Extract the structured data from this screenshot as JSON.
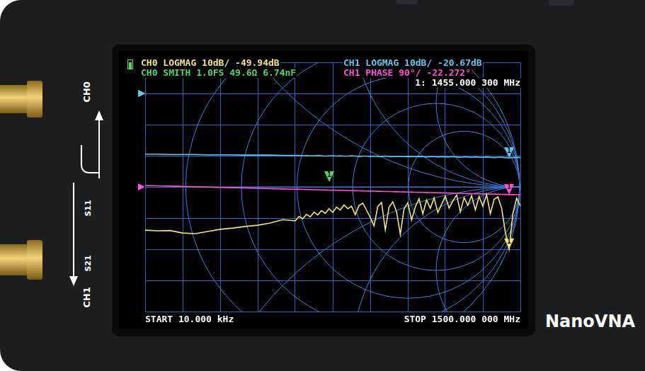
{
  "chart_data": {
    "type": "line",
    "grid": true,
    "tick_labels": false,
    "xlim": [
      0.01,
      1500
    ],
    "xticks": [
      0.01,
      150.009,
      300.008,
      450.007,
      600.006,
      750.005,
      900.004,
      1050.003,
      1200.002,
      1350.001,
      1500
    ],
    "ylim": [
      -70,
      10
    ],
    "yticks": [
      -70,
      -60,
      -50,
      -40,
      -30,
      -20,
      -10,
      0,
      10
    ],
    "y2lim": [
      -360,
      360
    ],
    "y2ticks": [
      -360,
      -270,
      -180,
      -90,
      0,
      90,
      180,
      270,
      360
    ],
    "x": [
      0.01,
      50,
      100,
      150,
      200,
      250,
      300,
      350,
      400,
      450,
      500,
      550,
      600,
      615,
      630,
      645,
      660,
      675,
      690,
      705,
      720,
      735,
      750,
      765,
      780,
      795,
      810,
      825,
      840,
      855,
      870,
      885,
      900,
      915,
      930,
      945,
      960,
      975,
      990,
      1005,
      1020,
      1035,
      1050,
      1065,
      1080,
      1095,
      1110,
      1125,
      1140,
      1155,
      1170,
      1185,
      1200,
      1215,
      1230,
      1245,
      1260,
      1275,
      1290,
      1305,
      1320,
      1335,
      1350,
      1365,
      1380,
      1395,
      1410,
      1425,
      1440,
      1455.0003,
      1470,
      1485,
      1500
    ],
    "series": [
      {
        "header": "CH0 LOGMAG 10dB/ -49.94dB",
        "color": "#f4e27c",
        "reference": 0,
        "values": [
          -43.9,
          -44.1,
          -44.0,
          -44.8,
          -45.0,
          -44.3,
          -43.6,
          -43.2,
          -42.7,
          -42.3,
          -41.6,
          -40.5,
          -40.9,
          -39.5,
          -40.2,
          -38.8,
          -39.6,
          -38.1,
          -39.0,
          -37.6,
          -38.5,
          -37.0,
          -38.2,
          -36.5,
          -37.4,
          -35.8,
          -37.0,
          -36.2,
          -38.9,
          -36.0,
          -35.2,
          -37.5,
          -39.8,
          -42.5,
          -36.3,
          -35.0,
          -43.8,
          -36.5,
          -34.8,
          -37.9,
          -45.2,
          -37.0,
          -35.1,
          -40.6,
          -36.4,
          -33.8,
          -38.7,
          -34.2,
          -36.9,
          -33.5,
          -38.2,
          -35.6,
          -33.0,
          -36.8,
          -34.5,
          -32.6,
          -38.0,
          -33.4,
          -35.9,
          -32.8,
          -37.4,
          -33.1,
          -36.2,
          -32.5,
          -38.6,
          -34.0,
          -33.2,
          -36.8,
          -44.6,
          -49.94,
          -38.5,
          -33.6,
          -36.1
        ]
      },
      {
        "header": "CH1 LOGMAG 10dB/ -20.67dB",
        "color": "#5ec8f2",
        "reference": 0,
        "values": [
          -19.5,
          -19.5,
          -19.6,
          -19.6,
          -19.6,
          -19.7,
          -19.7,
          -19.7,
          -19.8,
          -19.8,
          -19.8,
          -19.9,
          -19.9,
          -19.9,
          -20.0,
          -19.9,
          -20.0,
          -20.0,
          -19.9,
          -20.0,
          -20.1,
          -20.0,
          -20.0,
          -20.1,
          -20.0,
          -20.1,
          -20.1,
          -20.0,
          -20.1,
          -20.2,
          -20.1,
          -20.1,
          -20.2,
          -20.1,
          -20.2,
          -20.2,
          -20.1,
          -20.2,
          -20.3,
          -20.2,
          -20.2,
          -20.3,
          -20.2,
          -20.3,
          -20.3,
          -20.2,
          -20.3,
          -20.4,
          -20.3,
          -20.3,
          -20.4,
          -20.3,
          -20.4,
          -20.4,
          -20.3,
          -20.4,
          -20.5,
          -20.4,
          -20.4,
          -20.5,
          -20.4,
          -20.5,
          -20.5,
          -20.4,
          -20.5,
          -20.6,
          -20.5,
          -20.5,
          -20.6,
          -20.67,
          -20.6,
          -20.5,
          -20.6
        ]
      },
      {
        "header": "CH1 PHASE 90°/ -22.272°",
        "color": "#ff4fd8",
        "reference": 0,
        "axis": "y2",
        "values": [
          4.0,
          3.1,
          2.2,
          1.3,
          0.4,
          -0.5,
          -1.4,
          -2.3,
          -3.1,
          -4.0,
          -4.9,
          -5.8,
          -6.7,
          -7.0,
          -7.3,
          -7.5,
          -7.8,
          -8.1,
          -8.3,
          -8.6,
          -8.9,
          -9.1,
          -9.4,
          -9.7,
          -9.9,
          -10.2,
          -10.5,
          -10.7,
          -11.0,
          -11.3,
          -11.5,
          -11.8,
          -12.1,
          -12.4,
          -12.6,
          -12.9,
          -13.2,
          -13.4,
          -13.7,
          -14.0,
          -14.2,
          -14.5,
          -14.8,
          -15.0,
          -15.3,
          -15.6,
          -15.8,
          -16.1,
          -16.4,
          -16.6,
          -16.9,
          -17.2,
          -17.4,
          -17.7,
          -18.0,
          -18.3,
          -18.5,
          -18.8,
          -19.1,
          -19.3,
          -19.6,
          -19.9,
          -20.1,
          -20.4,
          -20.7,
          -20.9,
          -21.2,
          -21.5,
          -21.7,
          -22.272,
          -22.3,
          -22.5,
          -22.8
        ]
      }
    ],
    "smith": {
      "header": "CH0 SMITH 1.0FS 49.6Ω 6.74nF",
      "color": "#4fd86a",
      "marker": {
        "re": -0.14,
        "im": 0.03
      }
    },
    "markers": [
      {
        "label": "1",
        "x": 1455.0003,
        "text": "1: 1455.000 300 MHz"
      }
    ],
    "start_label": "START 10.000 kHz",
    "stop_label": "STOP 1500.000 000 MHz"
  },
  "device": {
    "ports": [
      "CH0",
      "CH1"
    ],
    "paths": [
      "S11",
      "S21"
    ],
    "brand": "NanoVNA"
  }
}
